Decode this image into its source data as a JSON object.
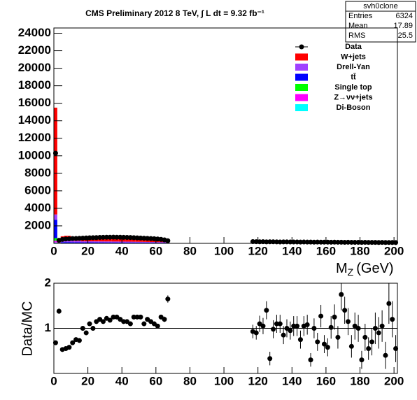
{
  "chart_data": [
    {
      "type": "stacked_histogram",
      "title": "CMS Preliminary 2012 8 TeV, ∫ L dt = 9.32 fb⁻¹",
      "x_label": {
        "main": "M",
        "sub": "Z",
        "unit": "(GeV)"
      },
      "stats": {
        "name": "svh0clone",
        "rows": [
          [
            "Entries",
            6324
          ],
          [
            "Mean",
            17.89
          ],
          [
            "RMS",
            25.5
          ]
        ]
      },
      "x": [
        1,
        3,
        5,
        7,
        9,
        11,
        13,
        15,
        17,
        19,
        21,
        23,
        25,
        27,
        29,
        31,
        33,
        35,
        37,
        39,
        41,
        43,
        45,
        47,
        49,
        51,
        53,
        55,
        57,
        59,
        61,
        63,
        65,
        67,
        69,
        71,
        73,
        75,
        77,
        79,
        81,
        83,
        85,
        87,
        89,
        91,
        93,
        95,
        97,
        99,
        101,
        103,
        105,
        107,
        109,
        111,
        113,
        115,
        117,
        119,
        121,
        123,
        125,
        127,
        129,
        131,
        133,
        135,
        137,
        139,
        141,
        143,
        145,
        147,
        149,
        151,
        153,
        155,
        157,
        159,
        161,
        163,
        165,
        167,
        169,
        171,
        173,
        175,
        177,
        179,
        181,
        183,
        185,
        187,
        189,
        191,
        193,
        195,
        197,
        199,
        201
      ],
      "xlim": [
        0,
        202
      ],
      "xticks": [
        0,
        20,
        40,
        60,
        80,
        100,
        120,
        140,
        160,
        180,
        200
      ],
      "ylim": [
        0,
        24600
      ],
      "yticks": [
        2000,
        4000,
        6000,
        8000,
        10000,
        12000,
        14000,
        16000,
        18000,
        20000,
        22000,
        24000
      ],
      "data_points": {
        "name": "Data",
        "color": "#000000",
        "values": [
          10300,
          350,
          450,
          500,
          520,
          550,
          560,
          580,
          600,
          620,
          640,
          650,
          660,
          680,
          690,
          700,
          700,
          710,
          700,
          700,
          690,
          680,
          670,
          650,
          630,
          610,
          590,
          570,
          550,
          530,
          500,
          460,
          400,
          300,
          null,
          null,
          null,
          null,
          null,
          null,
          null,
          null,
          null,
          null,
          null,
          null,
          null,
          null,
          null,
          null,
          null,
          null,
          null,
          null,
          null,
          null,
          null,
          null,
          200,
          190,
          180,
          190,
          170,
          180,
          175,
          170,
          160,
          170,
          165,
          160,
          155,
          160,
          150,
          155,
          145,
          150,
          140,
          145,
          140,
          135,
          140,
          130,
          135,
          125,
          130,
          120,
          125,
          120,
          115,
          120,
          110,
          115,
          110,
          105,
          110,
          100,
          105,
          100,
          95,
          100,
          90
        ]
      },
      "series": [
        {
          "name": "W+jets",
          "color": "#ff0000",
          "values": [
            12200,
            150,
            500,
            540,
            540,
            480,
            450,
            470,
            360,
            360,
            360,
            350,
            350,
            340,
            340,
            330,
            330,
            320,
            320,
            310,
            300,
            290,
            280,
            270,
            260,
            250,
            240,
            230,
            220,
            210,
            200,
            190,
            170,
            150,
            0,
            0,
            0,
            0,
            0,
            0,
            0,
            0,
            0,
            0,
            0,
            0,
            0,
            0,
            0,
            0,
            0,
            0,
            0,
            0,
            0,
            0,
            0,
            0,
            110,
            108,
            106,
            104,
            102,
            100,
            98,
            96,
            94,
            92,
            90,
            88,
            86,
            84,
            82,
            80,
            78,
            76,
            74,
            72,
            70,
            68,
            66,
            64,
            62,
            60,
            58,
            56,
            54,
            52,
            50,
            48,
            46,
            44,
            42,
            40,
            38,
            36,
            34,
            32,
            30,
            28,
            26
          ]
        },
        {
          "name": "Drell-Yan",
          "color": "#a040ff",
          "values": [
            600,
            50,
            170,
            180,
            180,
            160,
            150,
            160,
            120,
            120,
            120,
            120,
            115,
            115,
            110,
            110,
            110,
            105,
            105,
            100,
            100,
            95,
            95,
            90,
            85,
            85,
            80,
            75,
            70,
            70,
            65,
            60,
            55,
            50,
            0,
            0,
            0,
            0,
            0,
            0,
            0,
            0,
            0,
            0,
            0,
            0,
            0,
            0,
            0,
            0,
            0,
            0,
            0,
            0,
            0,
            0,
            0,
            0,
            30,
            30,
            30,
            30,
            30,
            30,
            30,
            30,
            30,
            30,
            30,
            30,
            30,
            30,
            30,
            30,
            30,
            30,
            30,
            30,
            30,
            30,
            30,
            30,
            30,
            30,
            30,
            30,
            30,
            30,
            30,
            30,
            30,
            30,
            30,
            30,
            30,
            30,
            30,
            30,
            30,
            30,
            30
          ]
        },
        {
          "name": "tt̄",
          "color": "#0000ff",
          "values": [
            2100,
            30,
            100,
            110,
            110,
            100,
            90,
            95,
            80,
            80,
            80,
            78,
            78,
            76,
            76,
            74,
            74,
            72,
            72,
            70,
            68,
            66,
            64,
            62,
            60,
            58,
            56,
            54,
            52,
            50,
            48,
            46,
            42,
            38,
            0,
            0,
            0,
            0,
            0,
            0,
            0,
            0,
            0,
            0,
            0,
            0,
            0,
            0,
            0,
            0,
            0,
            0,
            0,
            0,
            0,
            0,
            0,
            0,
            25,
            25,
            25,
            25,
            25,
            25,
            25,
            25,
            25,
            25,
            25,
            25,
            25,
            25,
            25,
            25,
            25,
            25,
            25,
            25,
            25,
            25,
            25,
            25,
            25,
            25,
            25,
            25,
            25,
            25,
            25,
            25,
            25,
            25,
            25,
            25,
            25,
            25,
            25,
            25,
            25,
            25,
            25
          ]
        },
        {
          "name": "Single top",
          "color": "#00ff00",
          "values": [
            300,
            10,
            20,
            20,
            20,
            20,
            20,
            20,
            20,
            20,
            20,
            20,
            20,
            20,
            20,
            20,
            20,
            20,
            20,
            20,
            20,
            20,
            20,
            20,
            20,
            20,
            20,
            20,
            20,
            20,
            20,
            20,
            20,
            20,
            0,
            0,
            0,
            0,
            0,
            0,
            0,
            0,
            0,
            0,
            0,
            0,
            0,
            0,
            0,
            0,
            0,
            0,
            0,
            0,
            0,
            0,
            0,
            0,
            5,
            5,
            5,
            5,
            5,
            5,
            5,
            5,
            5,
            5,
            5,
            5,
            5,
            5,
            5,
            5,
            5,
            5,
            5,
            5,
            5,
            5,
            5,
            5,
            5,
            5,
            5,
            5,
            5,
            5,
            5,
            5,
            5,
            5,
            5,
            5,
            5,
            5,
            5,
            5,
            5,
            5,
            5
          ]
        },
        {
          "name": "Z→νν+jets",
          "color": "#ff00ff",
          "values": [
            200,
            5,
            10,
            10,
            10,
            10,
            10,
            10,
            10,
            10,
            10,
            10,
            10,
            10,
            10,
            10,
            10,
            10,
            10,
            10,
            10,
            10,
            10,
            10,
            10,
            10,
            10,
            10,
            10,
            10,
            10,
            10,
            10,
            10,
            0,
            0,
            0,
            0,
            0,
            0,
            0,
            0,
            0,
            0,
            0,
            0,
            0,
            0,
            0,
            0,
            0,
            0,
            0,
            0,
            0,
            0,
            0,
            0,
            3,
            3,
            3,
            3,
            3,
            3,
            3,
            3,
            3,
            3,
            3,
            3,
            3,
            3,
            3,
            3,
            3,
            3,
            3,
            3,
            3,
            3,
            3,
            3,
            3,
            3,
            3,
            3,
            3,
            3,
            3,
            3,
            3,
            3,
            3,
            3,
            3,
            3,
            3,
            3,
            3,
            3,
            3
          ]
        },
        {
          "name": "Di-Boson",
          "color": "#00ffff",
          "values": [
            100,
            3,
            5,
            5,
            5,
            5,
            5,
            5,
            5,
            5,
            5,
            5,
            5,
            5,
            5,
            5,
            5,
            5,
            5,
            5,
            5,
            5,
            5,
            5,
            5,
            5,
            5,
            5,
            5,
            5,
            5,
            5,
            5,
            5,
            0,
            0,
            0,
            0,
            0,
            0,
            0,
            0,
            0,
            0,
            0,
            0,
            0,
            0,
            0,
            0,
            0,
            0,
            0,
            0,
            0,
            0,
            0,
            0,
            2,
            2,
            2,
            2,
            2,
            2,
            2,
            2,
            2,
            2,
            2,
            2,
            2,
            2,
            2,
            2,
            2,
            2,
            2,
            2,
            2,
            2,
            2,
            2,
            2,
            2,
            2,
            2,
            2,
            2,
            2,
            2,
            2,
            2,
            2,
            2,
            2,
            2,
            2,
            2,
            2,
            2,
            2
          ]
        }
      ]
    },
    {
      "type": "errorbar",
      "y_label": "Data/MC",
      "x": [
        1,
        3,
        5,
        7,
        9,
        11,
        13,
        15,
        17,
        19,
        21,
        23,
        25,
        27,
        29,
        31,
        33,
        35,
        37,
        39,
        41,
        43,
        45,
        47,
        49,
        51,
        53,
        55,
        57,
        59,
        61,
        63,
        65,
        67,
        69,
        71,
        73,
        75,
        77,
        79,
        81,
        83,
        85,
        87,
        89,
        91,
        93,
        95,
        97,
        99,
        101,
        103,
        105,
        107,
        109,
        111,
        113,
        115,
        117,
        119,
        121,
        123,
        125,
        127,
        129,
        131,
        133,
        135,
        137,
        139,
        141,
        143,
        145,
        147,
        149,
        151,
        153,
        155,
        157,
        159,
        161,
        163,
        165,
        167,
        169,
        171,
        173,
        175,
        177,
        179,
        181,
        183,
        185,
        187,
        189,
        191,
        193,
        195,
        197,
        199,
        201
      ],
      "xlim": [
        0,
        202
      ],
      "xticks": [
        0,
        20,
        40,
        60,
        80,
        100,
        120,
        140,
        160,
        180,
        200
      ],
      "ylim": [
        0,
        2
      ],
      "yticks": [
        1,
        2
      ],
      "reference_line": 1,
      "color": "#000000",
      "values": [
        0.68,
        1.38,
        0.53,
        0.55,
        0.58,
        0.68,
        0.75,
        0.73,
        1.0,
        0.9,
        1.1,
        1.0,
        1.15,
        1.2,
        1.15,
        1.22,
        1.18,
        1.25,
        1.25,
        1.2,
        1.15,
        1.15,
        1.1,
        1.25,
        1.25,
        1.25,
        1.1,
        1.2,
        1.15,
        1.1,
        1.05,
        1.25,
        1.2,
        1.65,
        null,
        null,
        null,
        null,
        null,
        null,
        null,
        null,
        null,
        null,
        null,
        null,
        null,
        null,
        null,
        null,
        null,
        null,
        null,
        null,
        null,
        null,
        null,
        null,
        0.93,
        0.9,
        1.1,
        1.05,
        1.4,
        0.33,
        0.98,
        1.1,
        1.1,
        0.85,
        1.0,
        0.95,
        1.05,
        1.05,
        0.75,
        1.05,
        1.08,
        0.3,
        1.0,
        0.7,
        1.27,
        0.65,
        0.58,
        1.02,
        1.25,
        0.8,
        1.75,
        1.4,
        1.15,
        0.6,
        1.05,
        1.0,
        0.3,
        0.8,
        0.55,
        0.7,
        1.0,
        0.9,
        1.05,
        0.4,
        1.55,
        1.2,
        0.55
      ],
      "errors": [
        0.02,
        0.06,
        0.03,
        0.03,
        0.03,
        0.03,
        0.03,
        0.03,
        0.04,
        0.04,
        0.04,
        0.04,
        0.04,
        0.04,
        0.04,
        0.04,
        0.04,
        0.04,
        0.04,
        0.04,
        0.04,
        0.04,
        0.04,
        0.04,
        0.04,
        0.04,
        0.04,
        0.04,
        0.04,
        0.04,
        0.04,
        0.05,
        0.06,
        0.08,
        null,
        null,
        null,
        null,
        null,
        null,
        null,
        null,
        null,
        null,
        null,
        null,
        null,
        null,
        null,
        null,
        null,
        null,
        null,
        null,
        null,
        null,
        null,
        null,
        0.15,
        0.15,
        0.18,
        0.18,
        0.2,
        0.15,
        0.2,
        0.2,
        0.2,
        0.2,
        0.2,
        0.2,
        0.22,
        0.22,
        0.2,
        0.22,
        0.22,
        0.15,
        0.22,
        0.2,
        0.25,
        0.2,
        0.2,
        0.25,
        0.28,
        0.25,
        0.35,
        0.3,
        0.3,
        0.25,
        0.3,
        0.3,
        0.2,
        0.3,
        0.25,
        0.3,
        0.35,
        0.35,
        0.35,
        0.3,
        0.45,
        0.4,
        0.3
      ]
    }
  ]
}
